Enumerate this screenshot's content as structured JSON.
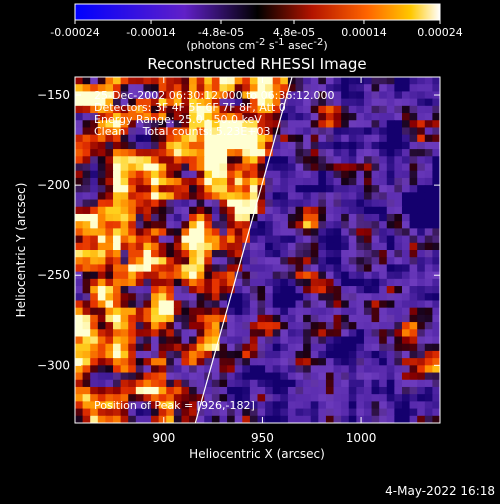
{
  "chart_data": {
    "type": "heatmap",
    "title": "Reconstructed RHESSI Image",
    "xlabel": "Heliocentric X (arcsec)",
    "ylabel": "Heliocentric Y (arcsec)",
    "xlim": [
      855,
      1040
    ],
    "ylim": [
      -332,
      -140
    ],
    "x_ticks": [
      900,
      950,
      1000
    ],
    "y_ticks": [
      -150,
      -200,
      -250,
      -300
    ],
    "colorbar": {
      "min": -0.00024,
      "max": 0.00024,
      "tick_values": [
        -0.00024,
        -0.00014,
        -4.8e-05,
        4.8e-05,
        0.00014,
        0.00024
      ],
      "tick_labels": [
        "-0.00024",
        "-0.00014",
        "-4.8e-05",
        "4.8e-05",
        "0.00014",
        "0.00024"
      ],
      "unit_label_parts": [
        "(photons cm",
        "-2",
        " s",
        "-1",
        " asec",
        "-2",
        ")"
      ]
    },
    "annotations": [
      "25-Dec-2002 06:30:12.000 to 06:36:12.000",
      "Detectors: 3F 4F 5F 6F 7F 8F, Att 0",
      "Energy Range: 25.0 - 50.0 keV",
      "Clean     Total counts: 5.23E+03"
    ],
    "peak_label": "Position of Peak = [926,-182]",
    "peak": [
      926,
      -182
    ],
    "limb_line": {
      "x": [
        916,
        965
      ],
      "y": [
        -332,
        -140
      ]
    }
  },
  "footer": {
    "date_stamp": "4-May-2022 16:18"
  }
}
